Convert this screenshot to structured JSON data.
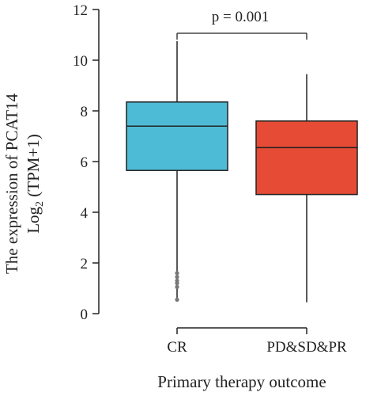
{
  "chart_data": {
    "type": "box",
    "xlabel": "Primary therapy outcome",
    "ylabel_line1": "The expression of PCAT14",
    "ylabel_line2_prefix": "Log",
    "ylabel_line2_sub": "2",
    "ylabel_line2_suffix": " (TPM+1)",
    "ylim": [
      0,
      12
    ],
    "yticks": [
      "0",
      "2",
      "4",
      "6",
      "8",
      "10",
      "12"
    ],
    "annotation": "p = 0.001",
    "categories": [
      "CR",
      "PD&SD&PR"
    ],
    "boxes": [
      {
        "category": "CR",
        "color": "#4dbbd5",
        "whisker_low": 0.5,
        "q1": 5.65,
        "median": 7.4,
        "q3": 8.35,
        "whisker_high": 10.75,
        "outliers": [
          1.6,
          1.45,
          1.3,
          1.2,
          1.05,
          0.55
        ]
      },
      {
        "category": "PD&SD&PR",
        "color": "#e64b35",
        "whisker_low": 0.45,
        "q1": 4.7,
        "median": 6.55,
        "q3": 7.6,
        "whisker_high": 9.45,
        "outliers": []
      }
    ]
  }
}
